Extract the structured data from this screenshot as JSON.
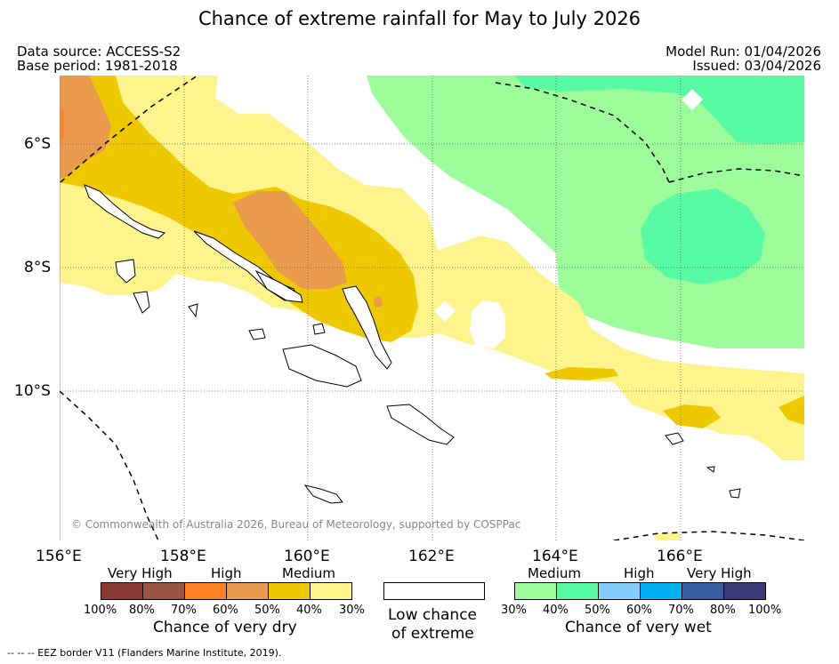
{
  "title": "Chance of extreme rainfall for May to July 2026",
  "meta": {
    "data_source": "Data source: ACCESS-S2",
    "base_period": "Base period: 1981-2018",
    "model_run": "Model Run: 01/04/2026",
    "issued": "Issued: 03/04/2026"
  },
  "axes": {
    "latitudes": [
      "6°S",
      "8°S",
      "10°S"
    ],
    "longitudes": [
      "156°E",
      "158°E",
      "160°E",
      "162°E",
      "164°E",
      "166°E"
    ]
  },
  "copyright": "© Commonwealth of Australia 2026, Bureau of Meteorology, supported by COSPPac",
  "legend": {
    "dry": {
      "categories": [
        "Very High",
        "High",
        "Medium"
      ],
      "ticks": [
        "100%",
        "80%",
        "70%",
        "60%",
        "50%",
        "40%",
        "30%"
      ],
      "colors": [
        "#8b3a33",
        "#9a5540",
        "#ff8025",
        "#ea9a4c",
        "#eec800",
        "#fdf58c"
      ],
      "caption": "Chance of very dry"
    },
    "low": {
      "caption_line1": "Low chance",
      "caption_line2": "of extreme"
    },
    "wet": {
      "categories": [
        "Medium",
        "High",
        "Very High"
      ],
      "ticks": [
        "30%",
        "40%",
        "50%",
        "60%",
        "70%",
        "80%",
        "100%"
      ],
      "colors": [
        "#9cfc99",
        "#56fba3",
        "#84cdfc",
        "#00b0f0",
        "#365fa2",
        "#3a3a78"
      ],
      "caption": "Chance of very wet"
    }
  },
  "footnote": "--  --  -- EEZ border V11 (Flanders Marine Institute, 2019)."
}
